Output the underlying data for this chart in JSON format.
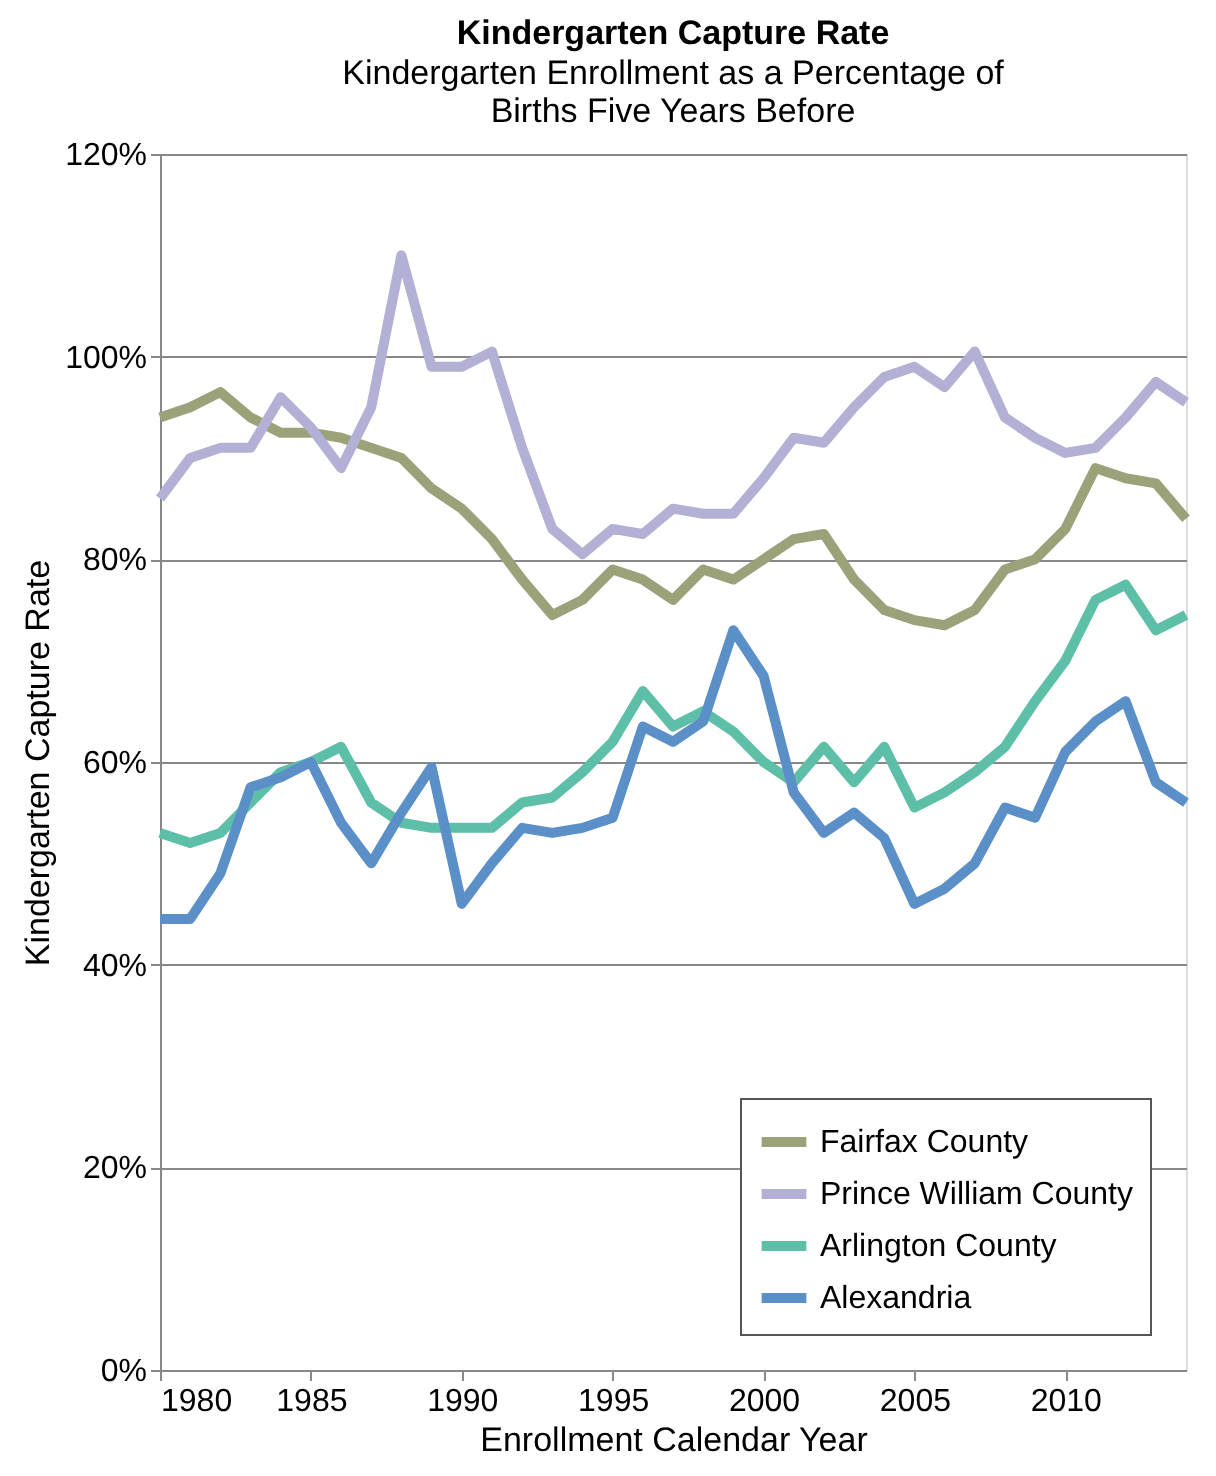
{
  "chart_data": {
    "type": "line",
    "title": "Kindergarten Capture Rate",
    "subtitle": [
      "Kindergarten Enrollment as a Percentage of",
      "Births Five Years Before"
    ],
    "xlabel": "Enrollment Calendar Year",
    "ylabel": "Kindergarten Capture Rate",
    "x": [
      1980,
      1981,
      1982,
      1983,
      1984,
      1985,
      1986,
      1987,
      1988,
      1989,
      1990,
      1991,
      1992,
      1993,
      1994,
      1995,
      1996,
      1997,
      1998,
      1999,
      2000,
      2001,
      2002,
      2003,
      2004,
      2005,
      2006,
      2007,
      2008,
      2009,
      2010,
      2011,
      2012,
      2013,
      2014
    ],
    "series": [
      {
        "name": "Fairfax County",
        "color": "#9ba27a",
        "values": [
          94,
          95,
          96.5,
          94,
          92.5,
          92.5,
          92,
          91,
          90,
          87,
          85,
          82,
          78,
          74.5,
          76,
          79,
          78,
          76,
          79,
          78,
          80,
          82,
          82.5,
          78,
          75,
          74,
          73.5,
          75,
          79,
          80,
          83,
          89,
          88,
          87.5,
          84
        ]
      },
      {
        "name": "Prince William County",
        "color": "#b3b0d6",
        "values": [
          86,
          90,
          91,
          91,
          96,
          93,
          89,
          95,
          110,
          99,
          99,
          100.5,
          91,
          83,
          80.5,
          83,
          82.5,
          85,
          84.5,
          84.5,
          88,
          92,
          91.5,
          95,
          98,
          99,
          97,
          100.5,
          94,
          92,
          90.5,
          91,
          94,
          97.5,
          95.5
        ]
      },
      {
        "name": "Arlington County",
        "color": "#5dbfa8",
        "values": [
          53,
          52,
          53,
          56,
          59,
          60,
          61.5,
          56,
          54,
          53.5,
          53.5,
          53.5,
          56,
          56.5,
          59,
          62,
          67,
          63.5,
          65,
          63,
          60,
          58,
          61.5,
          58,
          61.5,
          55.5,
          57,
          59,
          61.5,
          66,
          70,
          76,
          77.5,
          73,
          74.5
        ]
      },
      {
        "name": "Alexandria",
        "color": "#5b8fc7",
        "values": [
          44.5,
          44.5,
          49,
          57.5,
          58.5,
          60,
          54,
          50,
          55,
          59.5,
          46,
          50,
          53.5,
          53,
          53.5,
          54.5,
          63.5,
          62,
          64,
          73,
          68.5,
          57,
          53,
          55,
          52.5,
          46,
          47.5,
          50,
          55.5,
          54.5,
          61,
          64,
          66,
          58,
          56
        ]
      }
    ],
    "xlim": [
      1980,
      2014
    ],
    "xticks": [
      1980,
      1985,
      1990,
      1995,
      2000,
      2005,
      2010
    ],
    "ylim": [
      0,
      120
    ],
    "yticks": [
      {
        "value": 0,
        "label": "0%"
      },
      {
        "value": 20,
        "label": "20%"
      },
      {
        "value": 40,
        "label": "40%"
      },
      {
        "value": 60,
        "label": "60%"
      },
      {
        "value": 80,
        "label": "80%"
      },
      {
        "value": 100,
        "label": "100%"
      },
      {
        "value": 120,
        "label": "120%"
      }
    ],
    "grid": "y",
    "legend": "bottom right",
    "marker": "none",
    "line_style": "solid"
  }
}
